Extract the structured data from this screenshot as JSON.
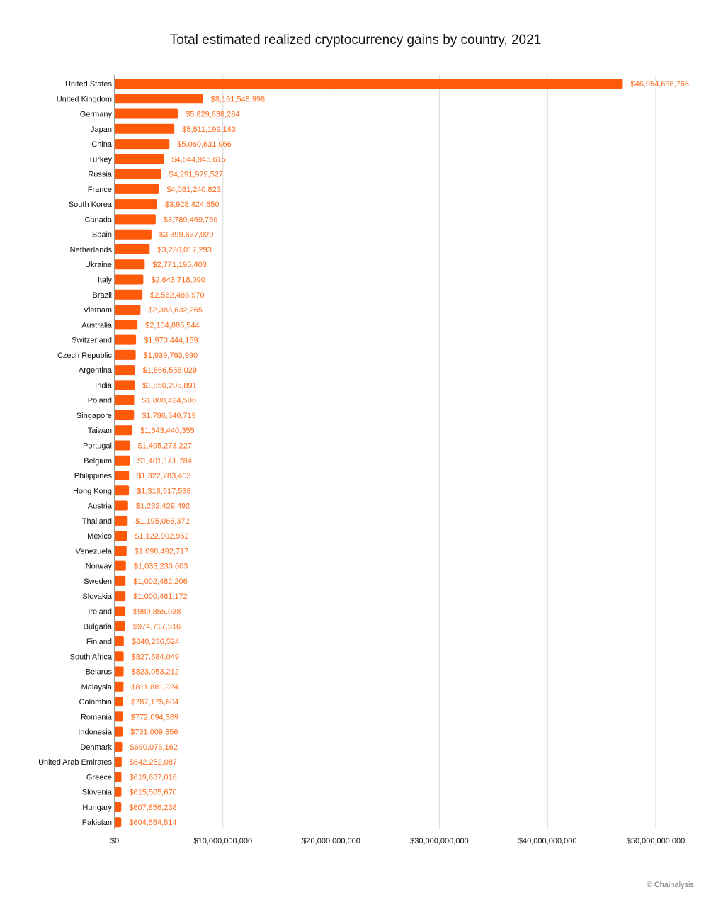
{
  "chart_data": {
    "type": "bar",
    "orientation": "horizontal",
    "title": "Total estimated realized cryptocurrency gains by country, 2021",
    "xlabel": "",
    "ylabel": "",
    "xlim": [
      0,
      50000000000
    ],
    "grid": true,
    "bar_color": "#ff5a0a",
    "label_color": "#ff6a1a",
    "x_ticks": [
      {
        "value": 0,
        "label": "$0"
      },
      {
        "value": 10000000000,
        "label": "$10,000,000,000"
      },
      {
        "value": 20000000000,
        "label": "$20,000,000,000"
      },
      {
        "value": 30000000000,
        "label": "$30,000,000,000"
      },
      {
        "value": 40000000000,
        "label": "$40,000,000,000"
      },
      {
        "value": 50000000000,
        "label": "$50,000,000,000"
      }
    ],
    "categories": [
      "United States",
      "United Kingdom",
      "Germany",
      "Japan",
      "China",
      "Turkey",
      "Russia",
      "France",
      "South Korea",
      "Canada",
      "Spain",
      "Netherlands",
      "Ukraine",
      "Italy",
      "Brazil",
      "Vietnam",
      "Australia",
      "Switzerland",
      "Czech Republic",
      "Argentina",
      "India",
      "Poland",
      "Singapore",
      "Taiwan",
      "Portugal",
      "Belgium",
      "Philippines",
      "Hong Kong",
      "Austria",
      "Thailand",
      "Mexico",
      "Venezuela",
      "Norway",
      "Sweden",
      "Slovakia",
      "Ireland",
      "Bulgaria",
      "Finland",
      "South Africa",
      "Belarus",
      "Malaysia",
      "Colombia",
      "Romania",
      "Indonesia",
      "Denmark",
      "United Arab Emirates",
      "Greece",
      "Slovenia",
      "Hungary",
      "Pakistan"
    ],
    "values": [
      46954638766,
      8161548998,
      5829638284,
      5511199143,
      5060631966,
      4544945615,
      4291979527,
      4081240823,
      3928424850,
      3789469769,
      3399637920,
      3230017293,
      2771195403,
      2643718090,
      2562486970,
      2383632265,
      2104885544,
      1970444159,
      1939793990,
      1866558029,
      1850205891,
      1800424506,
      1786340719,
      1643440355,
      1405273227,
      1401141784,
      1322783403,
      1318517538,
      1232429492,
      1195066372,
      1122902962,
      1098492717,
      1033230603,
      1002482206,
      1000461172,
      989855038,
      974717516,
      840236524,
      827584049,
      823053212,
      811881924,
      787175604,
      772094389,
      731009356,
      690076162,
      642252087,
      619637016,
      615505670,
      607856238,
      604554514
    ],
    "value_labels": [
      "$46,954,638,766",
      "$8,161,548,998",
      "$5,829,638,284",
      "$5,511,199,143",
      "$5,060,631,966",
      "$4,544,945,615",
      "$4,291,979,527",
      "$4,081,240,823",
      "$3,928,424,850",
      "$3,789,469,769",
      "$3,399,637,920",
      "$3,230,017,293",
      "$2,771,195,403",
      "$2,643,718,090",
      "$2,562,486,970",
      "$2,383,632,265",
      "$2,104,885,544",
      "$1,970,444,159",
      "$1,939,793,990",
      "$1,866,558,029",
      "$1,850,205,891",
      "$1,800,424,506",
      "$1,786,340,719",
      "$1,643,440,355",
      "$1,405,273,227",
      "$1,401,141,784",
      "$1,322,783,403",
      "$1,318,517,538",
      "$1,232,429,492",
      "$1,195,066,372",
      "$1,122,902,962",
      "$1,098,492,717",
      "$1,033,230,603",
      "$1,002,482,206",
      "$1,000,461,172",
      "$989,855,038",
      "$974,717,516",
      "$840,236,524",
      "$827,584,049",
      "$823,053,212",
      "$811,881,924",
      "$787,175,604",
      "$772,094,389",
      "$731,009,356",
      "$690,076,162",
      "$642,252,087",
      "$619,637,016",
      "$615,505,670",
      "$607,856,238",
      "$604,554,514"
    ]
  },
  "source": "© Chainalysis"
}
